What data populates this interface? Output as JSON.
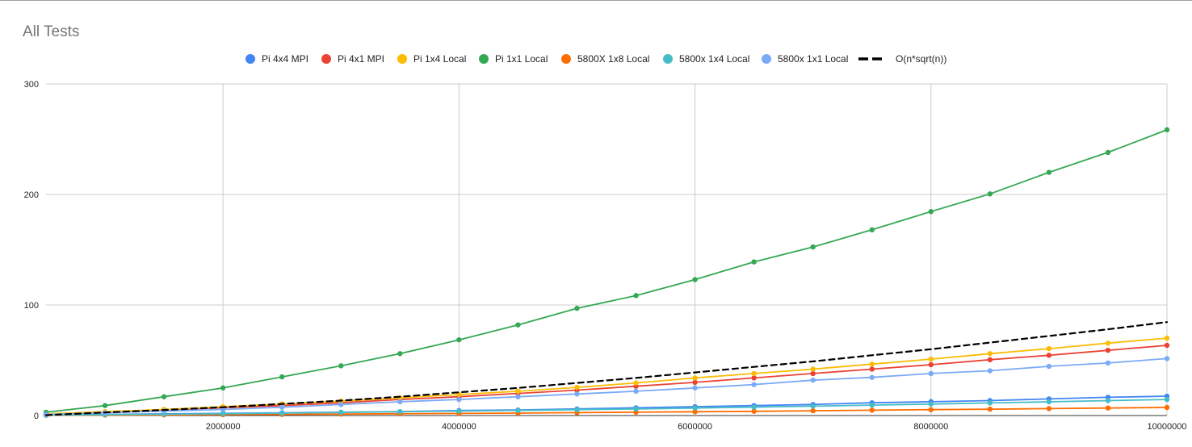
{
  "chart_data": {
    "type": "line",
    "title": "All Tests",
    "xlabel": "",
    "ylabel": "",
    "xlim": [
      500000,
      10000000
    ],
    "ylim": [
      0,
      300
    ],
    "x_ticks": [
      2000000,
      4000000,
      6000000,
      8000000,
      10000000
    ],
    "y_ticks": [
      0,
      100,
      200,
      300
    ],
    "x_tick_labels": [
      "2000000",
      "4000000",
      "6000000",
      "8000000",
      "10000000"
    ],
    "y_tick_labels": [
      "0",
      "100",
      "200",
      "300"
    ],
    "grid": true,
    "legend_position": "top",
    "x": [
      500000,
      1000000,
      1500000,
      2000000,
      2500000,
      3000000,
      3500000,
      4000000,
      4500000,
      5000000,
      5500000,
      6000000,
      6500000,
      7000000,
      7500000,
      8000000,
      8500000,
      9000000,
      9500000,
      10000000
    ],
    "series": [
      {
        "name": "Pi 4x4 MPI",
        "color": "#4285f4",
        "markers": true,
        "dashed": false,
        "values": [
          0.5,
          1,
          1.5,
          2,
          2.5,
          3,
          3.5,
          4.5,
          5,
          6,
          7,
          8,
          9,
          10,
          11.5,
          12.5,
          13.5,
          15,
          16.5,
          17.5
        ]
      },
      {
        "name": "Pi 4x1 MPI",
        "color": "#ea4335",
        "markers": true,
        "dashed": false,
        "values": [
          1,
          3,
          5,
          7,
          9,
          11.5,
          14.5,
          17,
          20,
          23,
          26.5,
          30,
          34,
          38,
          42,
          46,
          50.5,
          54.5,
          59,
          63.5
        ]
      },
      {
        "name": "Pi 1x4 Local",
        "color": "#fbbc04",
        "markers": true,
        "dashed": false,
        "values": [
          1.5,
          3.5,
          5.5,
          8,
          10.5,
          13,
          16,
          19,
          22,
          25.5,
          29.5,
          34,
          38,
          42,
          46.5,
          51,
          56,
          60.5,
          65.5,
          70
        ]
      },
      {
        "name": "Pi 1x1 Local",
        "color": "#34a853",
        "markers": true,
        "dashed": false,
        "values": [
          3,
          9,
          17,
          25,
          35,
          45,
          56,
          68.5,
          82,
          97,
          108.5,
          123,
          139,
          152.5,
          168,
          184.5,
          200.5,
          220,
          238,
          258.5
        ]
      },
      {
        "name": "5800X 1x8 Local",
        "color": "#ff6d01",
        "markers": true,
        "dashed": false,
        "values": [
          0.2,
          0.4,
          0.6,
          0.8,
          1,
          1.3,
          1.6,
          1.9,
          2.2,
          2.6,
          3,
          3.4,
          3.8,
          4.3,
          4.8,
          5.3,
          5.8,
          6.3,
          6.8,
          7.3
        ]
      },
      {
        "name": "5800x 1x4 Local",
        "color": "#46bdc6",
        "markers": true,
        "dashed": false,
        "values": [
          0.4,
          0.8,
          1.2,
          1.7,
          2.2,
          2.8,
          3.4,
          4,
          4.6,
          5.3,
          6,
          6.8,
          7.6,
          8.5,
          9.4,
          10.4,
          11.4,
          12.4,
          13.5,
          14.5
        ]
      },
      {
        "name": "5800x 1x1 Local",
        "color": "#7baaf7",
        "markers": true,
        "dashed": false,
        "values": [
          1,
          2.5,
          4,
          5.5,
          7.5,
          10,
          12.5,
          14.5,
          17,
          19.5,
          22,
          25,
          28,
          32,
          34.5,
          38,
          40.5,
          44.5,
          47.5,
          51.5
        ]
      },
      {
        "name": "O(n*sqrt(n))",
        "color": "#000000",
        "markers": false,
        "dashed": true,
        "values": [
          0.4,
          2.8,
          5,
          7.5,
          10.5,
          13.5,
          17,
          21,
          25,
          29.5,
          34,
          39,
          44,
          49,
          54.5,
          60,
          66,
          72,
          78,
          84.5
        ]
      }
    ]
  }
}
